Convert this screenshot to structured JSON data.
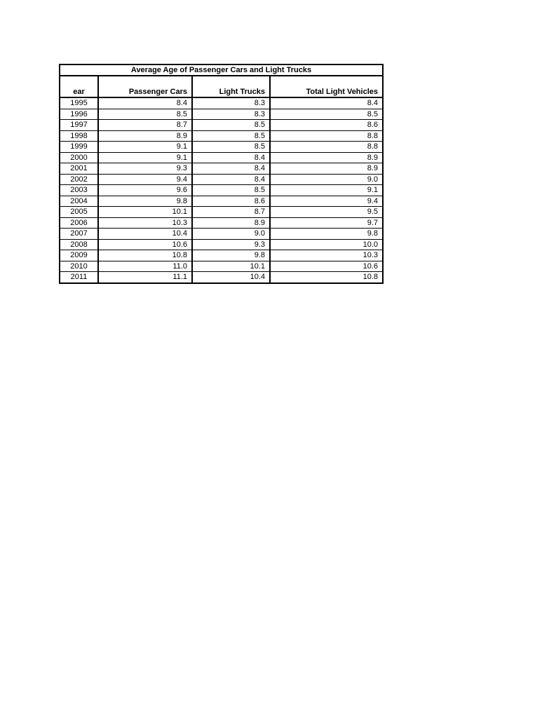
{
  "table": {
    "title": "Average Age of Passenger Cars and Light Trucks",
    "columns": [
      "ear",
      "Passenger Cars",
      "Light Trucks",
      "Total Light Vehicles"
    ],
    "rows": [
      [
        "1995",
        "8.4",
        "8.3",
        "8.4"
      ],
      [
        "1996",
        "8.5",
        "8.3",
        "8.5"
      ],
      [
        "1997",
        "8.7",
        "8.5",
        "8.6"
      ],
      [
        "1998",
        "8.9",
        "8.5",
        "8.8"
      ],
      [
        "1999",
        "9.1",
        "8.5",
        "8.8"
      ],
      [
        "2000",
        "9.1",
        "8.4",
        "8.9"
      ],
      [
        "2001",
        "9.3",
        "8.4",
        "8.9"
      ],
      [
        "2002",
        "9.4",
        "8.4",
        "9.0"
      ],
      [
        "2003",
        "9.6",
        "8.5",
        "9.1"
      ],
      [
        "2004",
        "9.8",
        "8.6",
        "9.4"
      ],
      [
        "2005",
        "10.1",
        "8.7",
        "9.5"
      ],
      [
        "2006",
        "10.3",
        "8.9",
        "9.7"
      ],
      [
        "2007",
        "10.4",
        "9.0",
        "9.8"
      ],
      [
        "2008",
        "10.6",
        "9.3",
        "10.0"
      ],
      [
        "2009",
        "10.8",
        "9.8",
        "10.3"
      ],
      [
        "2010",
        "11.0",
        "10.1",
        "10.6"
      ],
      [
        "2011",
        "11.1",
        "10.4",
        "10.8"
      ]
    ]
  }
}
